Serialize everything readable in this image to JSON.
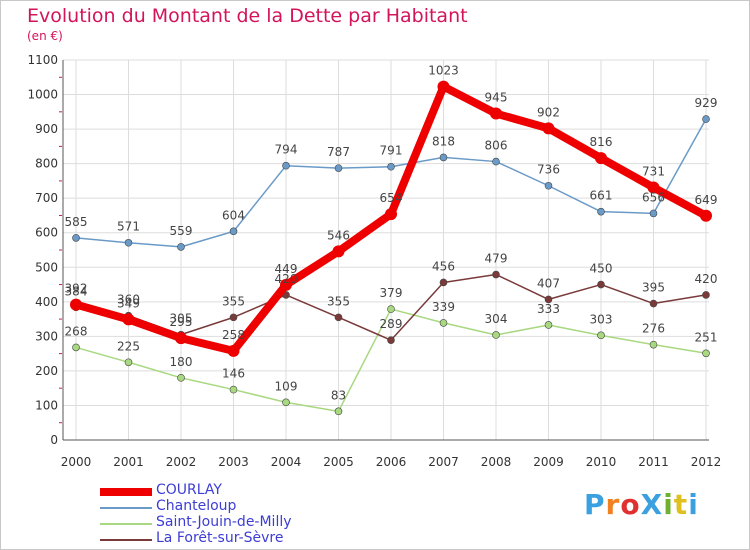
{
  "title": "Evolution du Montant de la Dette par Habitant",
  "subtitle": "(en €)",
  "logo": {
    "text": "ProXiti",
    "colors": [
      "#3aa0e0",
      "#f08020",
      "#e03030",
      "#3aa0e0",
      "#70b030",
      "#e0c020",
      "#3aa0e0"
    ]
  },
  "chart_data": {
    "type": "line",
    "title": "Evolution du Montant de la Dette par Habitant",
    "subtitle": "(en €)",
    "x": [
      "2000",
      "2001",
      "2002",
      "2003",
      "2004",
      "2005",
      "2006",
      "2007",
      "2008",
      "2009",
      "2010",
      "2011",
      "2012"
    ],
    "ylim": [
      0,
      1100
    ],
    "yticks": [
      0,
      100,
      200,
      300,
      400,
      500,
      600,
      700,
      800,
      900,
      1000,
      1100
    ],
    "grid": true,
    "legend_position": "bottom-left",
    "series": [
      {
        "name": "COURLAY",
        "color": "#ee0000",
        "values": [
          392,
          349,
          295,
          258,
          449,
          546,
          654,
          1023,
          945,
          902,
          816,
          731,
          649
        ]
      },
      {
        "name": "Chanteloup",
        "color": "#6a9ac8",
        "values": [
          585,
          571,
          559,
          604,
          794,
          787,
          791,
          818,
          806,
          736,
          661,
          656,
          929
        ]
      },
      {
        "name": "Saint-Jouin-de-Milly",
        "color": "#a8d880",
        "values": [
          268,
          225,
          180,
          146,
          109,
          83,
          379,
          339,
          304,
          333,
          303,
          276,
          251
        ]
      },
      {
        "name": "La Forêt-sur-Sèvre",
        "color": "#7a3a3a",
        "values": [
          384,
          360,
          305,
          355,
          420,
          355,
          289,
          456,
          479,
          407,
          450,
          395,
          420
        ]
      }
    ]
  }
}
